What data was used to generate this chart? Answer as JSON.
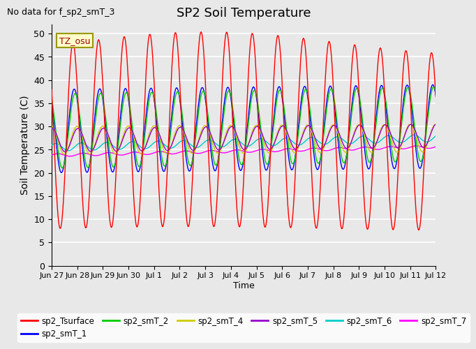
{
  "title": "SP2 Soil Temperature",
  "subtitle": "No data for f_sp2_smT_3",
  "ylabel": "Soil Temperature (C)",
  "xlabel": "Time",
  "tz_label": "TZ_osu",
  "ylim": [
    0,
    52
  ],
  "yticks": [
    0,
    5,
    10,
    15,
    20,
    25,
    30,
    35,
    40,
    45,
    50
  ],
  "x_tick_labels": [
    "Jun 27",
    "Jun 28",
    "Jun 29",
    "Jun 30",
    "Jul 1",
    "Jul 2",
    "Jul 3",
    "Jul 4",
    "Jul 5",
    "Jul 6",
    "Jul 7",
    "Jul 8",
    "Jul 9",
    "Jul 10",
    "Jul 11",
    "Jul 12"
  ],
  "series_colors": {
    "sp2_Tsurface": "#ff0000",
    "sp2_smT_1": "#0000ff",
    "sp2_smT_2": "#00cc00",
    "sp2_smT_4": "#cccc00",
    "sp2_smT_5": "#9900cc",
    "sp2_smT_6": "#00cccc",
    "sp2_smT_7": "#ff00ff"
  },
  "legend_colors": [
    "#ff0000",
    "#0000ff",
    "#00cc00",
    "#cccc00",
    "#9900cc",
    "#00cccc",
    "#ff00ff"
  ],
  "legend_labels": [
    "sp2_Tsurface",
    "sp2_smT_1",
    "sp2_smT_2",
    "sp2_smT_4",
    "sp2_smT_5",
    "sp2_smT_6",
    "sp2_smT_7"
  ],
  "bg_color": "#e8e8e8",
  "plot_bg_color": "#e8e8e8",
  "grid_color": "#ffffff",
  "num_days": 15,
  "points_per_day": 48
}
